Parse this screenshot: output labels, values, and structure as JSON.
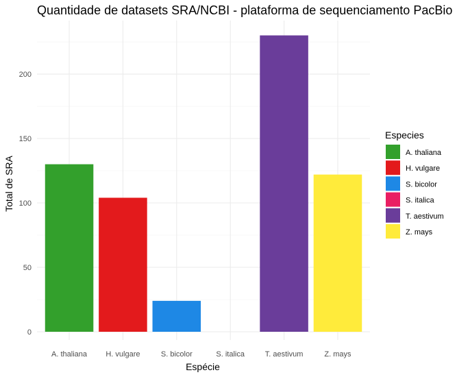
{
  "chart_data": {
    "type": "bar",
    "title": "Quantidade de datasets SRA/NCBI - plataforma de sequenciamento PacBio",
    "xlabel": "Espécie",
    "ylabel": "Total de SRA",
    "categories": [
      "A. thaliana",
      "H. vulgare",
      "S. bicolor",
      "S. italica",
      "T. aestivum",
      "Z. mays"
    ],
    "values": [
      130,
      104,
      24,
      0,
      230,
      122
    ],
    "colors": [
      "#33a02c",
      "#e31a1c",
      "#1e88e5",
      "#e91e63",
      "#6a3d9a",
      "#ffeb3b"
    ],
    "ylim": [
      0,
      241.5
    ],
    "yticks": [
      0,
      50,
      100,
      150,
      200
    ],
    "ytick_labels": [
      "0",
      "50",
      "100",
      "150",
      "200"
    ],
    "grid": true,
    "legend": {
      "title": "Especies",
      "position": "right",
      "entries": [
        "A. thaliana",
        "H. vulgare",
        "S. bicolor",
        "S. italica",
        "T. aestivum",
        "Z. mays"
      ]
    }
  }
}
